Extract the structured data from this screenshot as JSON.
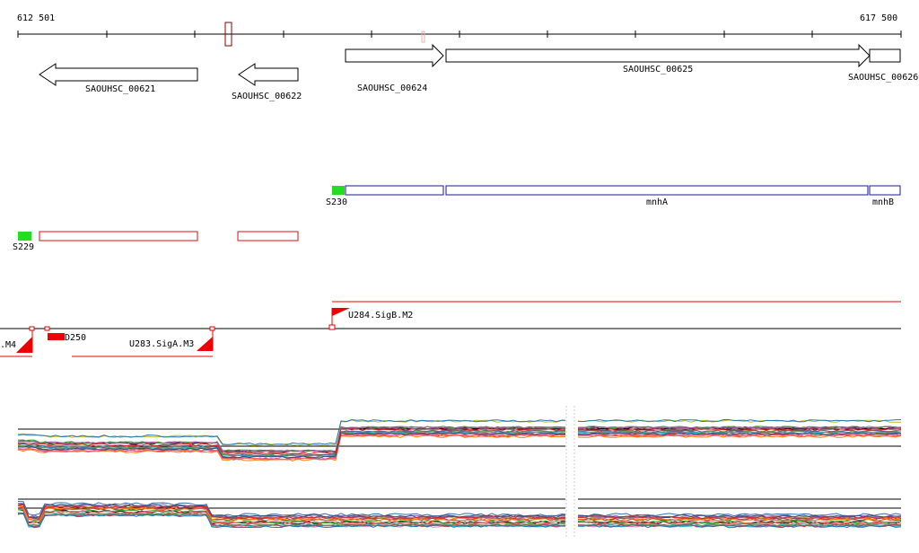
{
  "ruler": {
    "start_label": "612 501",
    "end_label": "617 500"
  },
  "genes": [
    {
      "label": "SAOUHSC_00621",
      "strand": "-"
    },
    {
      "label": "SAOUHSC_00622",
      "strand": "-"
    },
    {
      "label": "SAOUHSC_00624",
      "strand": "+"
    },
    {
      "label": "SAOUHSC_00625",
      "strand": "+"
    },
    {
      "label": "SAOUHSC_00626",
      "strand": "+"
    }
  ],
  "segments_upper": {
    "segment_label": "S230",
    "gene_labels": [
      "mnhA",
      "mnhB"
    ]
  },
  "segments_lower": {
    "segment_label": "S229"
  },
  "regulation": {
    "left_partial_label": ".M4",
    "downstream_label": "D250",
    "promoter_label": "U283.SigA.M3",
    "promoter2_label": "U284.SigB.M2"
  },
  "colors": {
    "gene_outline": "#000000",
    "segment_blue": "#1a1a9a",
    "segment_red": "#dd1111",
    "segment_green": "#22dd22",
    "promoter_red": "#ee0000",
    "profile_palette": [
      "#1f77b4",
      "#d62728",
      "#2ca02c",
      "#9467bd",
      "#8c564b",
      "#e377c2",
      "#bcbd22",
      "#17becf",
      "#ff7f0e",
      "#7f7f7f",
      "#b23a48",
      "#3b6ea5",
      "#6a994e",
      "#a05195",
      "#f95d6a",
      "#2f4b7c"
    ]
  }
}
